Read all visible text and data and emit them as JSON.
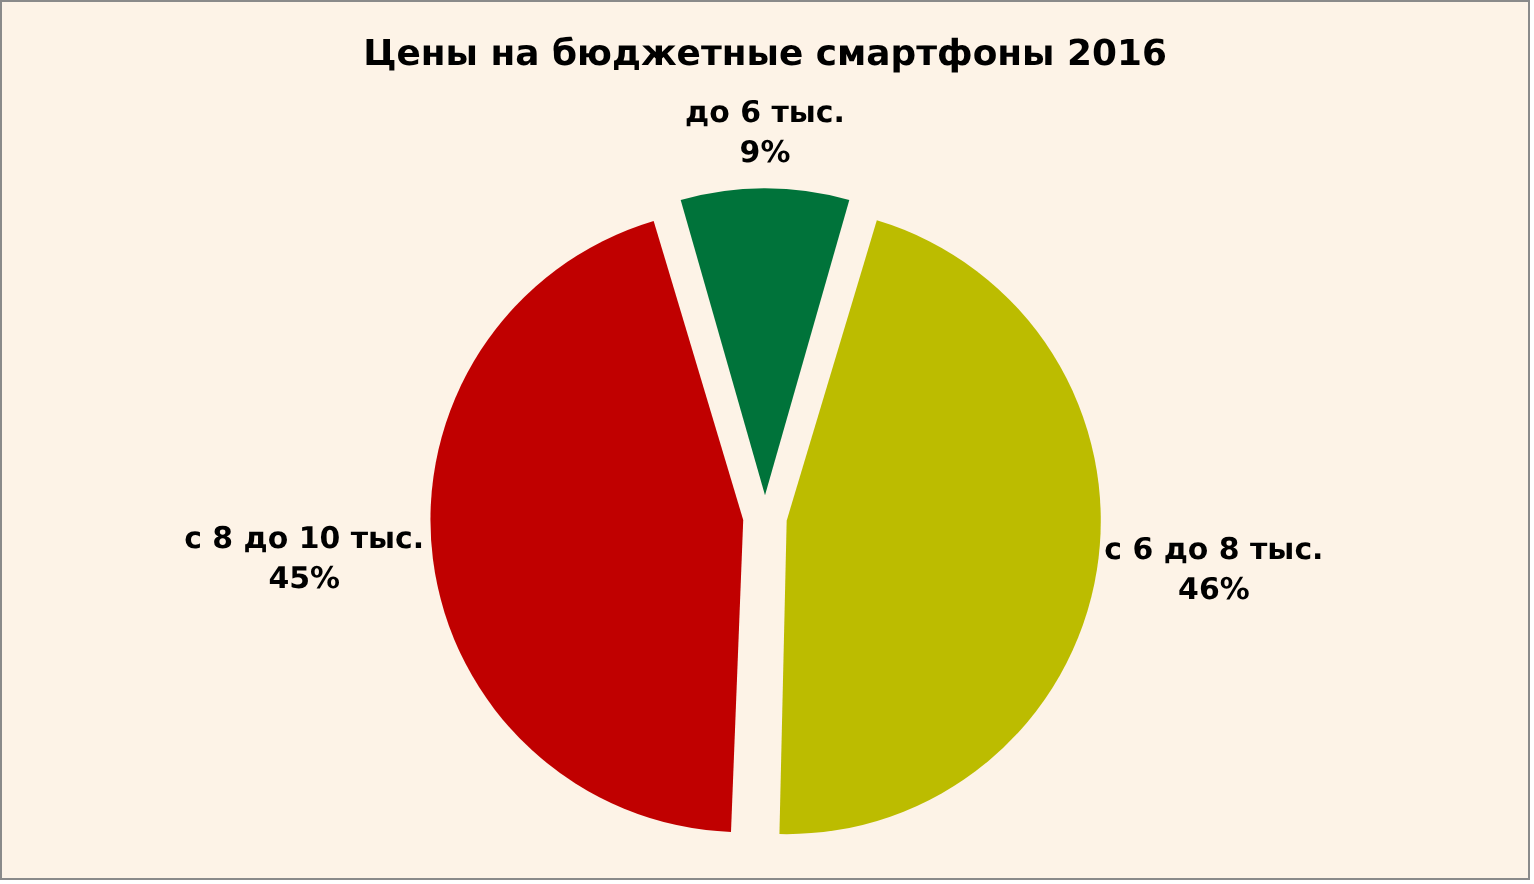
{
  "chart_data": {
    "type": "pie",
    "title": "Цены на бюджетные смартфоны 2016",
    "categories": [
      "до 6 тыс.",
      "с 6 до 8 тыс.",
      "с 8 до 10 тыс."
    ],
    "values": [
      9,
      46,
      45
    ],
    "colors": [
      "#00733a",
      "#bcbc00",
      "#c00000"
    ],
    "value_labels": [
      "9%",
      "46%",
      "45%"
    ],
    "legend": false
  }
}
